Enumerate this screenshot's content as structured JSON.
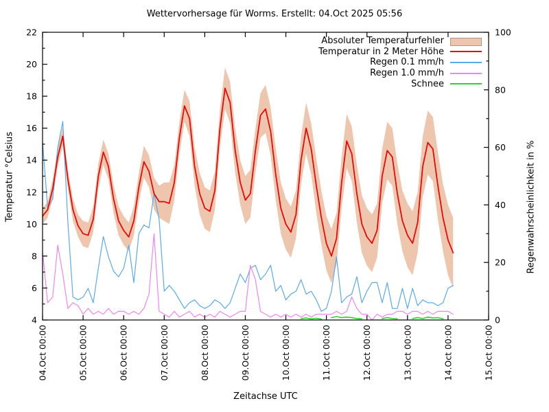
{
  "title": "Wettervorhersage für Worms. Erstellt: 04.Oct 2025 05:56",
  "axes": {
    "x_label": "Zeitachse UTC",
    "y_left_label": "Temperatur °Celsius",
    "y_right_label": "Regenwahrscheinlichkeit in %",
    "y_left_ticks": [
      4,
      6,
      8,
      10,
      12,
      14,
      16,
      18,
      20,
      22
    ],
    "y_right_ticks": [
      0,
      20,
      40,
      60,
      80,
      100
    ],
    "x_tick_labels": [
      "04.Oct 00:00",
      "05.Oct 00:00",
      "06.Oct 00:00",
      "07.Oct 00:00",
      "08.Oct 00:00",
      "09.Oct 00:00",
      "10.Oct 00:00",
      "11.Oct 00:00",
      "12.Oct 00:00",
      "13.Oct 00:00",
      "14.Oct 00:00",
      "15.Oct 00:00"
    ]
  },
  "colors": {
    "band": "#edc6ad",
    "temperature": "#e60909",
    "rain01": "#58a9ec",
    "rain10": "#ee85ee",
    "snow": "#2bd42b",
    "axis": "#000000"
  },
  "legend": [
    {
      "label": "Absoluter Temperaturfehler",
      "color": "#edc6ad",
      "type": "band",
      "name": "legend-temp-error"
    },
    {
      "label": "Temperatur in 2 Meter Höhe",
      "color": "#e60909",
      "type": "line",
      "name": "legend-temperature"
    },
    {
      "label": "Regen 0.1 mm/h",
      "color": "#58a9ec",
      "type": "line",
      "name": "legend-rain-01"
    },
    {
      "label": "Regen 1.0 mm/h",
      "color": "#ee85ee",
      "type": "line",
      "name": "legend-rain-10"
    },
    {
      "label": "Schnee",
      "color": "#2bd42b",
      "type": "line",
      "name": "legend-snow"
    }
  ],
  "chart_data": {
    "type": "line",
    "title": "Wettervorhersage für Worms. Erstellt: 04.Oct 2025 05:56",
    "xlabel": "Zeitachse UTC",
    "ylabel_left": "Temperatur °Celsius",
    "ylabel_right": "Regenwahrscheinlichkeit in %",
    "x_axis": {
      "unit": "hours_since_04_Oct_00:00_UTC",
      "range": [
        0,
        264
      ],
      "day_tick_every_hours": 24
    },
    "y_left_range": [
      4,
      22
    ],
    "y_right_range": [
      0,
      100
    ],
    "grid": false,
    "legend_position": "top-right",
    "x_hours": [
      0,
      3,
      6,
      9,
      12,
      15,
      18,
      21,
      24,
      27,
      30,
      33,
      36,
      39,
      42,
      45,
      48,
      51,
      54,
      57,
      60,
      63,
      66,
      69,
      72,
      75,
      78,
      81,
      84,
      87,
      90,
      93,
      96,
      99,
      102,
      105,
      108,
      111,
      114,
      117,
      120,
      123,
      126,
      129,
      132,
      135,
      138,
      141,
      144,
      147,
      150,
      153,
      156,
      159,
      162,
      165,
      168,
      171,
      174,
      177,
      180,
      183,
      186,
      189,
      192,
      195,
      198,
      201,
      204,
      207,
      210,
      213,
      216,
      219,
      222,
      225,
      228,
      231,
      234,
      237,
      240,
      243
    ],
    "series": [
      {
        "name": "Temperatur in 2 Meter Höhe",
        "axis": "left",
        "unit": "°C",
        "values": [
          10.5,
          10.9,
          12.2,
          14.2,
          15.5,
          12.8,
          10.9,
          9.9,
          9.4,
          9.3,
          10.3,
          13.0,
          14.5,
          13.6,
          11.6,
          10.2,
          9.6,
          9.2,
          10.2,
          12.3,
          13.9,
          13.3,
          11.9,
          11.4,
          11.4,
          11.3,
          12.6,
          15.4,
          17.4,
          16.6,
          13.6,
          11.9,
          11.0,
          10.8,
          12.1,
          16.0,
          18.5,
          17.6,
          14.6,
          12.6,
          11.5,
          11.9,
          14.6,
          16.8,
          17.2,
          15.8,
          13.1,
          11.0,
          10.0,
          9.5,
          10.6,
          14.0,
          16.0,
          14.7,
          12.4,
          10.4,
          8.8,
          8.0,
          9.1,
          12.6,
          15.2,
          14.4,
          11.9,
          10.0,
          9.2,
          8.8,
          9.6,
          13.0,
          14.6,
          14.2,
          11.9,
          10.2,
          9.3,
          8.8,
          10.1,
          13.6,
          15.1,
          14.7,
          12.4,
          10.4,
          9.0,
          8.2
        ]
      },
      {
        "name": "Absoluter Temperaturfehler (Halbbreite ±)",
        "axis": "left",
        "unit": "°C",
        "values": [
          0.5,
          0.5,
          0.6,
          0.6,
          0.6,
          0.6,
          0.7,
          0.7,
          0.8,
          0.8,
          0.8,
          0.8,
          0.8,
          0.8,
          0.9,
          0.9,
          0.9,
          0.9,
          0.9,
          0.9,
          1.0,
          1.0,
          1.0,
          1.0,
          1.2,
          1.3,
          1.1,
          1.0,
          1.0,
          1.1,
          1.2,
          1.3,
          1.3,
          1.3,
          1.2,
          1.2,
          1.3,
          1.3,
          1.4,
          1.4,
          1.5,
          1.5,
          1.4,
          1.4,
          1.5,
          1.5,
          1.6,
          1.6,
          1.6,
          1.6,
          1.5,
          1.5,
          1.6,
          1.6,
          1.7,
          1.7,
          1.7,
          1.7,
          1.6,
          1.6,
          1.7,
          1.7,
          1.8,
          1.8,
          1.8,
          1.8,
          1.7,
          1.7,
          1.8,
          1.8,
          1.9,
          1.9,
          2.0,
          2.0,
          1.9,
          1.9,
          2.0,
          2.0,
          2.1,
          2.1,
          2.2,
          2.2
        ]
      },
      {
        "name": "Regen 0.1 mm/h",
        "axis": "right",
        "unit": "%",
        "values": [
          62,
          39,
          42,
          60,
          69,
          34,
          8,
          7,
          8,
          11,
          6,
          18,
          29,
          22,
          17,
          15,
          18,
          26,
          13,
          30,
          33,
          32,
          44,
          35,
          10,
          12,
          10,
          7,
          4,
          6,
          7,
          5,
          4,
          5,
          7,
          6,
          4,
          6,
          11,
          16,
          13,
          18,
          19,
          14,
          16,
          19,
          10,
          12,
          7,
          9,
          10,
          14,
          9,
          10,
          7,
          3,
          4,
          10,
          22,
          6,
          8,
          9,
          15,
          6,
          10,
          13,
          13,
          6,
          13,
          4,
          4,
          11,
          4,
          11,
          5,
          7,
          6,
          6,
          5,
          6,
          11,
          12
        ]
      },
      {
        "name": "Regen 1.0 mm/h",
        "axis": "right",
        "unit": "%",
        "values": [
          24,
          6,
          8,
          26,
          16,
          4,
          6,
          5,
          2,
          4,
          2,
          3,
          2,
          4,
          2,
          3,
          3,
          2,
          3,
          2,
          4,
          9,
          30,
          3,
          2,
          1,
          3,
          1,
          2,
          3,
          1,
          2,
          1,
          2,
          1,
          3,
          2,
          1,
          2,
          3,
          3,
          19,
          14,
          3,
          2,
          1,
          2,
          1,
          2,
          1,
          2,
          1,
          2,
          1,
          2,
          2,
          2,
          2,
          3,
          2,
          3,
          8,
          4,
          2,
          2,
          0,
          2,
          1,
          2,
          2,
          3,
          3,
          2,
          3,
          3,
          2,
          3,
          2,
          3,
          3,
          3,
          2
        ]
      },
      {
        "name": "Schnee",
        "axis": "right",
        "unit": "%",
        "values": [
          null,
          null,
          null,
          null,
          null,
          null,
          null,
          null,
          null,
          null,
          null,
          null,
          null,
          null,
          null,
          null,
          null,
          null,
          null,
          null,
          null,
          null,
          null,
          null,
          null,
          null,
          null,
          null,
          null,
          null,
          null,
          null,
          null,
          null,
          null,
          null,
          null,
          null,
          null,
          null,
          null,
          null,
          null,
          null,
          null,
          null,
          null,
          null,
          null,
          null,
          null,
          0.5,
          0.7,
          0.4,
          0.6,
          0.3,
          null,
          0.8,
          1.2,
          0.8,
          1.0,
          0.8,
          0.5,
          0.4,
          null,
          null,
          null,
          0.5,
          0.8,
          0.5,
          0.4,
          null,
          null,
          0.5,
          0.8,
          0.5,
          1.0,
          0.7,
          0.8,
          0.4,
          null,
          null
        ]
      }
    ]
  }
}
